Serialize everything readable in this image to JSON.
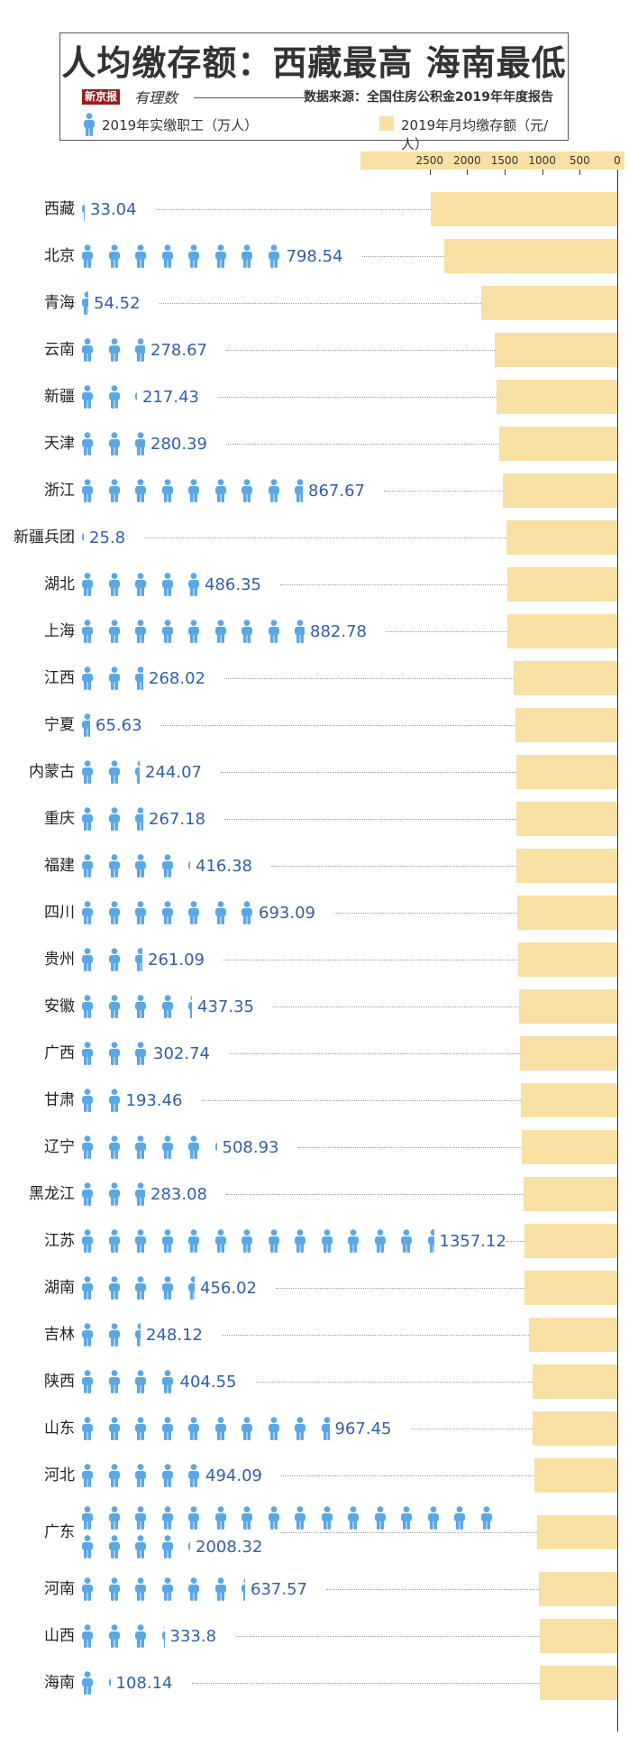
{
  "title": "人均缴存额：西藏最高 海南最低",
  "logo_main": "新京报",
  "logo_sub": "有理数",
  "source": "数据来源：全国住房公积金2019年年度报告",
  "legend": {
    "persons_label": "2019年实缴职工（万人）",
    "bars_label": "2019年月均缴存额（元/人）"
  },
  "colors": {
    "person": "#5aa7e6",
    "bar": "#f8e0a4",
    "value_text": "#2f5fa8"
  },
  "icons": {
    "person": "person-icon"
  },
  "chart_data": {
    "type": "bar",
    "title": "人均缴存额：西藏最高 海南最低",
    "xlim": [
      2500,
      0
    ],
    "x_ticks": [
      "2500",
      "2000",
      "1500",
      "1000",
      "500",
      "0"
    ],
    "persons_unit": 100,
    "categories": [
      "西藏",
      "北京",
      "青海",
      "云南",
      "新疆",
      "天津",
      "浙江",
      "新疆兵团",
      "湖北",
      "上海",
      "江西",
      "宁夏",
      "内蒙古",
      "重庆",
      "福建",
      "四川",
      "贵州",
      "安徽",
      "广西",
      "甘肃",
      "辽宁",
      "黑龙江",
      "江苏",
      "湖南",
      "吉林",
      "陕西",
      "山东",
      "河北",
      "广东",
      "河南",
      "山西",
      "海南"
    ],
    "series": [
      {
        "name": "2019年实缴职工（万人）",
        "values": [
          "33.04",
          "798.54",
          "54.52",
          "278.67",
          "217.43",
          "280.39",
          "867.67",
          "25.8",
          "486.35",
          "882.78",
          "268.02",
          "65.63",
          "244.07",
          "267.18",
          "416.38",
          "693.09",
          "261.09",
          "437.35",
          "302.74",
          "193.46",
          "508.93",
          "283.08",
          "1357.12",
          "456.02",
          "248.12",
          "404.55",
          "967.45",
          "494.09",
          "2008.32",
          "637.57",
          "333.8",
          "108.14"
        ]
      },
      {
        "name": "2019年月均缴存额（元/人）",
        "values": [
          2490,
          2310,
          1810,
          1630,
          1610,
          1570,
          1530,
          1480,
          1470,
          1460,
          1380,
          1360,
          1350,
          1350,
          1340,
          1330,
          1320,
          1310,
          1300,
          1290,
          1270,
          1250,
          1240,
          1240,
          1180,
          1130,
          1130,
          1110,
          1070,
          1050,
          1030,
          1030
        ]
      }
    ]
  }
}
